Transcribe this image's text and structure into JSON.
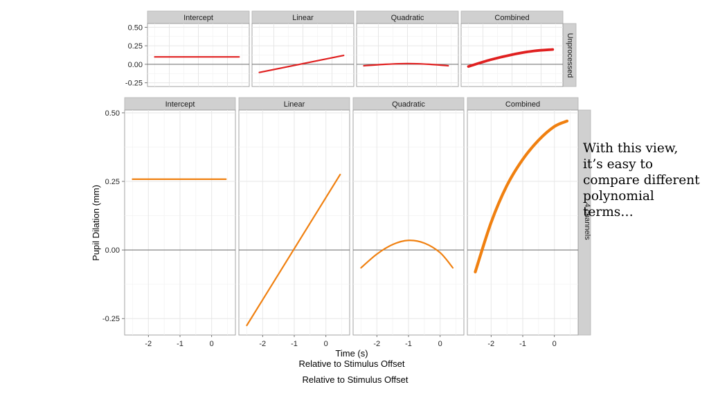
{
  "chart_data": [
    {
      "type": "line",
      "group": "Unprocessed",
      "panels": [
        "Intercept",
        "Linear",
        "Quadratic",
        "Combined"
      ],
      "ylim": [
        -0.3,
        0.55
      ],
      "yticks": [
        0.5,
        0.25,
        0.0,
        -0.25
      ],
      "ytick_labels": [
        "0.50",
        "0.25",
        "0.00",
        "-0.25"
      ],
      "xlim": [
        -2.75,
        0.75
      ],
      "color": "#e02020",
      "grid": true,
      "series": [
        {
          "panel": "Intercept",
          "x": [
            -2.5,
            0.4
          ],
          "y": [
            0.1,
            0.1
          ]
        },
        {
          "panel": "Linear",
          "x": [
            -2.5,
            0.4
          ],
          "y": [
            -0.11,
            0.12
          ]
        },
        {
          "panel": "Quadratic",
          "x": [
            -2.5,
            -1.75,
            -1.0,
            -0.25,
            0.4
          ],
          "y": [
            -0.02,
            0.0,
            0.01,
            0.0,
            -0.02
          ]
        },
        {
          "panel": "Combined",
          "x": [
            -2.5,
            -1.75,
            -1.0,
            -0.25,
            0.4
          ],
          "y": [
            -0.03,
            0.06,
            0.13,
            0.18,
            0.2
          ]
        }
      ]
    },
    {
      "type": "line",
      "group": "4 channels",
      "panels": [
        "Intercept",
        "Linear",
        "Quadratic",
        "Combined"
      ],
      "ylabel": "Pupil Dilation (mm)",
      "xlabel": "Time (s)",
      "xsublabel": "Relative to Stimulus Offset",
      "ylim": [
        -0.31,
        0.51
      ],
      "yticks": [
        0.5,
        0.25,
        0.0,
        -0.25
      ],
      "ytick_labels": [
        "0.50",
        "0.25",
        "0.00",
        "-0.25"
      ],
      "xlim": [
        -2.75,
        0.75
      ],
      "xticks": [
        -2,
        -1,
        0
      ],
      "xtick_labels": [
        "-2",
        "-1",
        "0"
      ],
      "color": "#f08010",
      "grid": true,
      "series": [
        {
          "panel": "Intercept",
          "x": [
            -2.5,
            0.45
          ],
          "y": [
            0.258,
            0.258
          ]
        },
        {
          "panel": "Linear",
          "x": [
            -2.5,
            0.45
          ],
          "y": [
            -0.275,
            0.275
          ]
        },
        {
          "panel": "Quadratic",
          "x": [
            -2.5,
            -2.0,
            -1.5,
            -1.0,
            -0.5,
            0.0,
            0.4
          ],
          "y": [
            -0.065,
            -0.015,
            0.02,
            0.035,
            0.025,
            -0.01,
            -0.065
          ]
        },
        {
          "panel": "Combined",
          "x": [
            -2.5,
            -2.0,
            -1.5,
            -1.0,
            -0.5,
            0.0,
            0.4
          ],
          "y": [
            -0.08,
            0.1,
            0.235,
            0.33,
            0.4,
            0.45,
            0.47
          ]
        }
      ]
    }
  ],
  "caption": "Relative to Stimulus Offset",
  "annotation": [
    "With this view,",
    "it’s easy to",
    "compare different",
    "polynomial",
    "terms…"
  ]
}
